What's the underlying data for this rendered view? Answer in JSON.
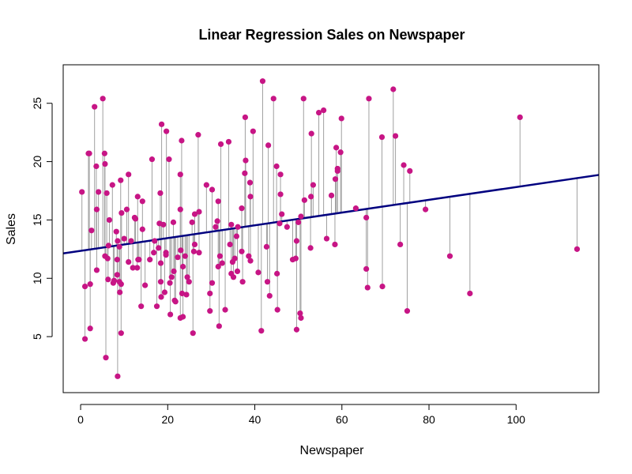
{
  "chart_data": {
    "type": "scatter",
    "title": "Linear Regression Sales on Newspaper",
    "xlabel": "Newspaper",
    "ylabel": "Sales",
    "xlim": [
      -4,
      119
    ],
    "ylim": [
      0.2,
      28.3
    ],
    "x_ticks": [
      0,
      20,
      40,
      60,
      80,
      100
    ],
    "y_ticks": [
      5,
      10,
      15,
      20,
      25
    ],
    "grid": false,
    "show_residual_lines": true,
    "regression": {
      "intercept": 12.35,
      "slope": 0.0547
    },
    "colors": {
      "points": "#C71585",
      "regression_line": "#00007F",
      "residual_lines": "#A0A0A0",
      "frame": "#000000"
    },
    "points": [
      [
        0.3,
        17.4
      ],
      [
        1,
        9.3
      ],
      [
        1,
        4.8
      ],
      [
        1.8,
        20.7
      ],
      [
        2,
        20.7
      ],
      [
        2.2,
        5.7
      ],
      [
        2.2,
        9.5
      ],
      [
        2.5,
        14.1
      ],
      [
        3.2,
        24.7
      ],
      [
        3.6,
        19.6
      ],
      [
        3.7,
        10.7
      ],
      [
        3.7,
        15.9
      ],
      [
        4.1,
        17.4
      ],
      [
        5.1,
        25.4
      ],
      [
        5.5,
        20.7
      ],
      [
        5.6,
        19.8
      ],
      [
        5.6,
        11.9
      ],
      [
        5.8,
        3.2
      ],
      [
        6,
        17.3
      ],
      [
        6.2,
        11.7
      ],
      [
        6.3,
        9.9
      ],
      [
        6.4,
        12.8
      ],
      [
        6.6,
        15
      ],
      [
        7.3,
        18
      ],
      [
        7.5,
        9.6
      ],
      [
        7.7,
        9.8
      ],
      [
        8.2,
        14
      ],
      [
        8.4,
        10.3
      ],
      [
        8.4,
        11.6
      ],
      [
        8.5,
        13.2
      ],
      [
        8.5,
        1.6
      ],
      [
        8.9,
        12.7
      ],
      [
        8.9,
        9.7
      ],
      [
        9,
        8.8
      ],
      [
        9.2,
        18.4
      ],
      [
        9.3,
        9.5
      ],
      [
        9.3,
        5.3
      ],
      [
        9.4,
        15.6
      ],
      [
        10,
        13.4
      ],
      [
        10.6,
        15.9
      ],
      [
        11,
        11.4
      ],
      [
        11,
        18.9
      ],
      [
        11.6,
        13.2
      ],
      [
        12,
        10.9
      ],
      [
        12.4,
        15.2
      ],
      [
        12.6,
        15.1
      ],
      [
        13,
        10.9
      ],
      [
        13.2,
        11.6
      ],
      [
        13.1,
        17
      ],
      [
        13.4,
        11.6
      ],
      [
        13.9,
        7.6
      ],
      [
        14.2,
        14.2
      ],
      [
        14.2,
        16.6
      ],
      [
        14.8,
        9.4
      ],
      [
        15.9,
        11.6
      ],
      [
        16.4,
        20.2
      ],
      [
        16.8,
        12.2
      ],
      [
        17,
        13.2
      ],
      [
        17.5,
        7.6
      ],
      [
        17.9,
        12.6
      ],
      [
        18.1,
        14.7
      ],
      [
        18.3,
        17.3
      ],
      [
        18.4,
        11.3
      ],
      [
        18.4,
        9.7
      ],
      [
        18.5,
        8.4
      ],
      [
        18.6,
        23.2
      ],
      [
        19,
        14.6
      ],
      [
        19.3,
        8.8
      ],
      [
        19.6,
        12.2
      ],
      [
        19.6,
        12
      ],
      [
        19.7,
        22.6
      ],
      [
        20.3,
        20.2
      ],
      [
        20.5,
        9.6
      ],
      [
        20.6,
        6.9
      ],
      [
        20.9,
        10.1
      ],
      [
        21.3,
        14.8
      ],
      [
        21.4,
        10.6
      ],
      [
        21.6,
        8.1
      ],
      [
        21.8,
        8
      ],
      [
        22.3,
        11.8
      ],
      [
        22.9,
        6.6
      ],
      [
        22.9,
        18.9
      ],
      [
        22.9,
        15.9
      ],
      [
        23,
        12.4
      ],
      [
        23.2,
        21.8
      ],
      [
        23.3,
        8.7
      ],
      [
        23.5,
        6.7
      ],
      [
        23.5,
        11
      ],
      [
        24,
        11.9
      ],
      [
        24.3,
        8.6
      ],
      [
        24.5,
        10.1
      ],
      [
        24.9,
        9.7
      ],
      [
        25.6,
        14.8
      ],
      [
        25.8,
        5.3
      ],
      [
        26,
        12.3
      ],
      [
        26.2,
        15.5
      ],
      [
        26.2,
        12.9
      ],
      [
        27,
        22.3
      ],
      [
        27.2,
        15.7
      ],
      [
        27.2,
        12.2
      ],
      [
        28.9,
        18
      ],
      [
        29.7,
        8.7
      ],
      [
        29.7,
        7.2
      ],
      [
        30.2,
        17.6
      ],
      [
        30.2,
        9.6
      ],
      [
        31,
        14.4
      ],
      [
        31.4,
        14.9
      ],
      [
        31.6,
        11
      ],
      [
        31.6,
        16.6
      ],
      [
        31.8,
        5.9
      ],
      [
        32,
        11.9
      ],
      [
        32.2,
        21.5
      ],
      [
        32.5,
        11.3
      ],
      [
        33.2,
        7.3
      ],
      [
        34,
        21.7
      ],
      [
        34.3,
        12.9
      ],
      [
        34.6,
        10.4
      ],
      [
        34.6,
        14.6
      ],
      [
        34.9,
        11.4
      ],
      [
        35.1,
        10.1
      ],
      [
        35.4,
        11.7
      ],
      [
        35.8,
        13.6
      ],
      [
        36,
        10.6
      ],
      [
        36.1,
        14.4
      ],
      [
        37,
        16
      ],
      [
        37,
        12.3
      ],
      [
        37.2,
        9.7
      ],
      [
        37.7,
        19
      ],
      [
        37.8,
        23.8
      ],
      [
        37.9,
        20.1
      ],
      [
        38.6,
        11.9
      ],
      [
        38.9,
        18.2
      ],
      [
        39,
        17
      ],
      [
        39,
        11.5
      ],
      [
        39.6,
        22.6
      ],
      [
        40.8,
        10.5
      ],
      [
        41.5,
        5.5
      ],
      [
        41.8,
        26.9
      ],
      [
        42.7,
        12.7
      ],
      [
        42.9,
        9.7
      ],
      [
        43.1,
        21.4
      ],
      [
        43.4,
        8.5
      ],
      [
        44.3,
        25.4
      ],
      [
        45,
        19.6
      ],
      [
        45.1,
        10.4
      ],
      [
        45.2,
        7.3
      ],
      [
        45.7,
        14.7
      ],
      [
        45.9,
        18.9
      ],
      [
        45.9,
        17.2
      ],
      [
        46.2,
        15.5
      ],
      [
        47.4,
        14.4
      ],
      [
        48.7,
        11.6
      ],
      [
        49.4,
        11.7
      ],
      [
        49.6,
        13.2
      ],
      [
        49.6,
        5.6
      ],
      [
        50,
        14.8
      ],
      [
        50.4,
        7
      ],
      [
        50.6,
        6.6
      ],
      [
        50.6,
        15.3
      ],
      [
        51.2,
        25.4
      ],
      [
        51.4,
        16.7
      ],
      [
        52.8,
        12.6
      ],
      [
        52.9,
        17
      ],
      [
        53,
        22.4
      ],
      [
        53.4,
        18
      ],
      [
        54.7,
        24.2
      ],
      [
        55.8,
        24.4
      ],
      [
        56.5,
        13.4
      ],
      [
        57.6,
        17.1
      ],
      [
        58.4,
        12.9
      ],
      [
        58.5,
        18.5
      ],
      [
        58.7,
        21.2
      ],
      [
        59,
        19.2
      ],
      [
        59,
        19.4
      ],
      [
        59.7,
        20.8
      ],
      [
        59.9,
        23.7
      ],
      [
        63.2,
        16
      ],
      [
        65.6,
        10.8
      ],
      [
        65.6,
        15.2
      ],
      [
        65.9,
        9.2
      ],
      [
        66.2,
        25.4
      ],
      [
        69.2,
        22.1
      ],
      [
        69.3,
        9.3
      ],
      [
        71.8,
        26.2
      ],
      [
        72.3,
        22.2
      ],
      [
        73.4,
        12.9
      ],
      [
        74.2,
        19.7
      ],
      [
        75,
        7.2
      ],
      [
        75.6,
        19.2
      ],
      [
        79.2,
        15.9
      ],
      [
        84.8,
        11.9
      ],
      [
        89.4,
        8.7
      ],
      [
        100.9,
        23.8
      ],
      [
        114,
        12.5
      ]
    ]
  }
}
